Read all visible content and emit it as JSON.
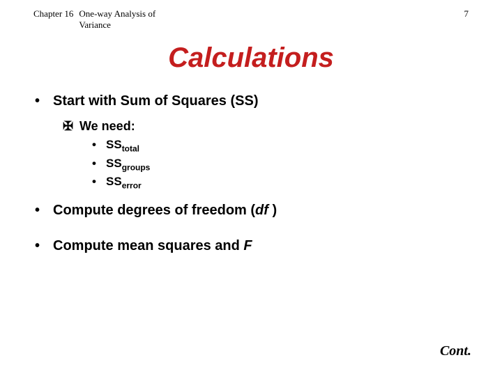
{
  "header": {
    "chapter_label": "Chapter 16",
    "chapter_title": "One-way Analysis of Variance",
    "page_number": "7"
  },
  "title": "Calculations",
  "bullets": {
    "b1": "Start with Sum of Squares (SS)",
    "b1_sub": "We need:",
    "ss1_base": "SS",
    "ss1_sub": "total",
    "ss2_base": "SS",
    "ss2_sub": "groups",
    "ss3_base": "SS",
    "ss3_sub": "error",
    "b2_pre": "Compute degrees of freedom (",
    "b2_df": "df",
    "b2_post": " )",
    "b3_pre": "Compute mean squares and ",
    "b3_f": "F"
  },
  "footer": "Cont.",
  "markers": {
    "level1": "•",
    "level2": "✠",
    "level3": "•"
  },
  "colors": {
    "title": "#c41e1e",
    "text": "#000000",
    "background": "#ffffff"
  },
  "fonts": {
    "title_size": 40,
    "body_size": 20,
    "header_size": 13
  }
}
